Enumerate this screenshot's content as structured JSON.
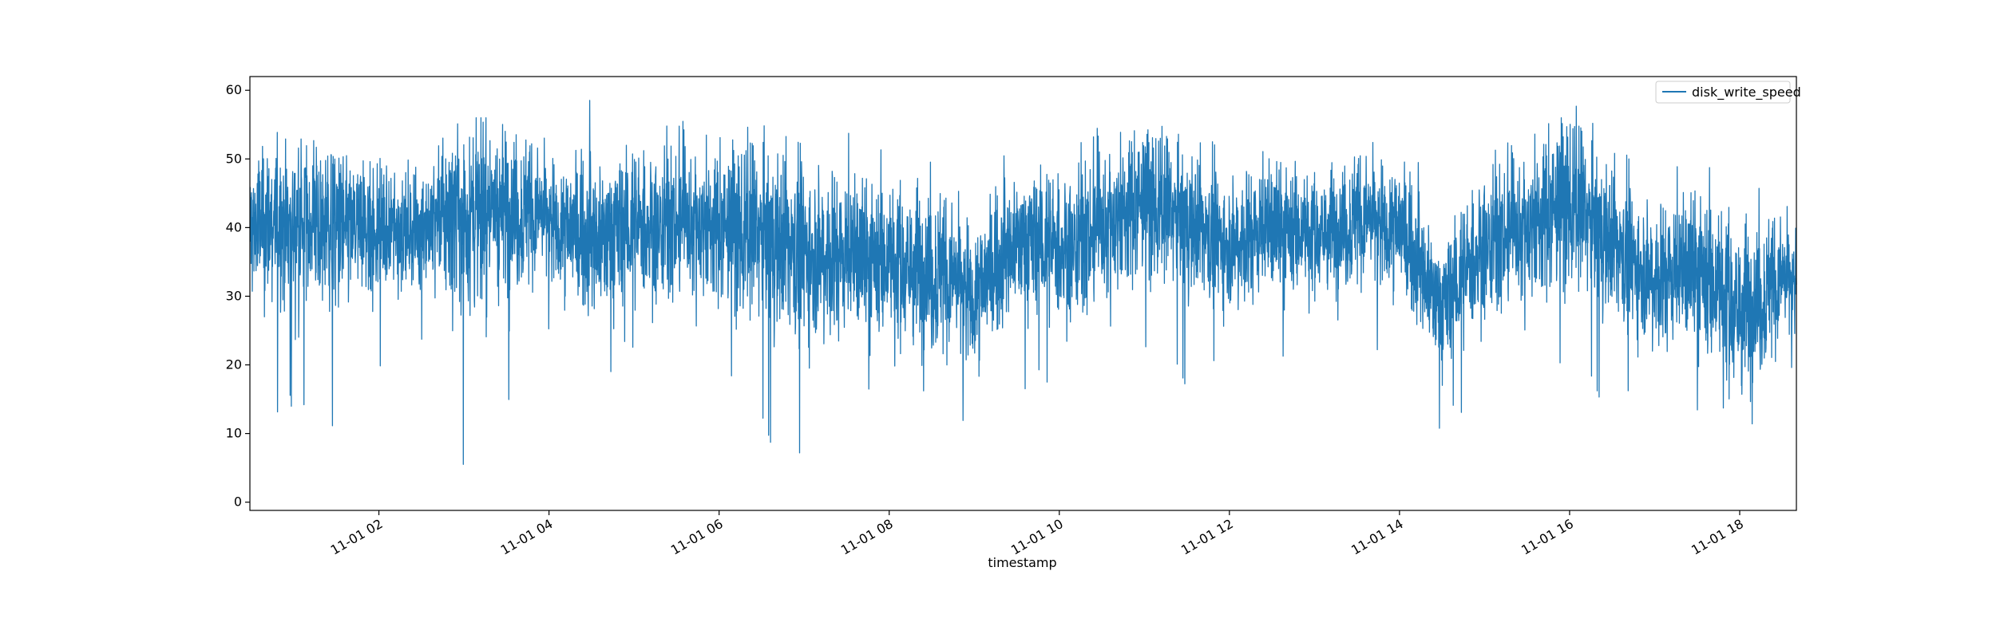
{
  "chart_data": {
    "type": "line",
    "title": "",
    "xlabel": "timestamp",
    "ylabel": "",
    "ylim": [
      -1.2,
      62
    ],
    "xlim": [
      "11-01 00:29",
      "11-01 18:40"
    ],
    "x_ticks": [
      "11-01 02",
      "11-01 04",
      "11-01 06",
      "11-01 08",
      "11-01 10",
      "11-01 12",
      "11-01 14",
      "11-01 16",
      "11-01 18"
    ],
    "y_ticks": [
      0,
      10,
      20,
      30,
      40,
      50,
      60
    ],
    "grid": false,
    "legend": {
      "position": "top-right",
      "entries": [
        "disk_write_speed"
      ]
    },
    "color": "#1f77b4",
    "series": [
      {
        "name": "disk_write_speed",
        "x": [
          "11-01 00:29",
          "11-01 01:00",
          "11-01 01:30",
          "11-01 02:00",
          "11-01 02:30",
          "11-01 03:00",
          "11-01 03:30",
          "11-01 04:00",
          "11-01 04:30",
          "11-01 05:00",
          "11-01 05:30",
          "11-01 06:00",
          "11-01 06:30",
          "11-01 07:00",
          "11-01 07:30",
          "11-01 08:00",
          "11-01 08:30",
          "11-01 09:00",
          "11-01 09:30",
          "11-01 10:00",
          "11-01 10:30",
          "11-01 11:00",
          "11-01 11:30",
          "11-01 12:00",
          "11-01 12:30",
          "11-01 13:00",
          "11-01 13:30",
          "11-01 14:00",
          "11-01 14:30",
          "11-01 15:00",
          "11-01 15:30",
          "11-01 16:00",
          "11-01 16:30",
          "11-01 17:00",
          "11-01 17:30",
          "11-01 18:00",
          "11-01 18:30",
          "11-01 18:40"
        ],
        "mean": [
          40,
          41,
          40,
          39,
          40,
          42,
          43,
          41,
          38,
          40,
          41,
          40,
          39,
          37,
          36,
          35,
          34,
          30,
          38,
          37,
          40,
          44,
          41,
          38,
          40,
          39,
          41,
          40,
          28,
          38,
          40,
          44,
          38,
          33,
          34,
          28,
          32,
          32
        ],
        "low": [
          10,
          12,
          9,
          17,
          22,
          1.5,
          12,
          22,
          18,
          20,
          16,
          18,
          10,
          3.5,
          13,
          13,
          7.5,
          9,
          17,
          14,
          15,
          20,
          17,
          18,
          17,
          20,
          17,
          21,
          10,
          11,
          16,
          18,
          14,
          12,
          10,
          3.8,
          11,
          19
        ],
        "high": [
          52,
          55,
          50,
          52,
          50,
          56,
          56,
          56,
          59,
          59,
          57,
          55,
          55,
          52,
          55,
          52,
          52,
          48,
          52,
          53,
          56,
          56,
          53,
          53,
          52,
          50,
          52,
          56,
          42,
          50,
          55,
          59,
          52,
          50,
          50,
          50,
          46,
          48
        ]
      }
    ]
  }
}
